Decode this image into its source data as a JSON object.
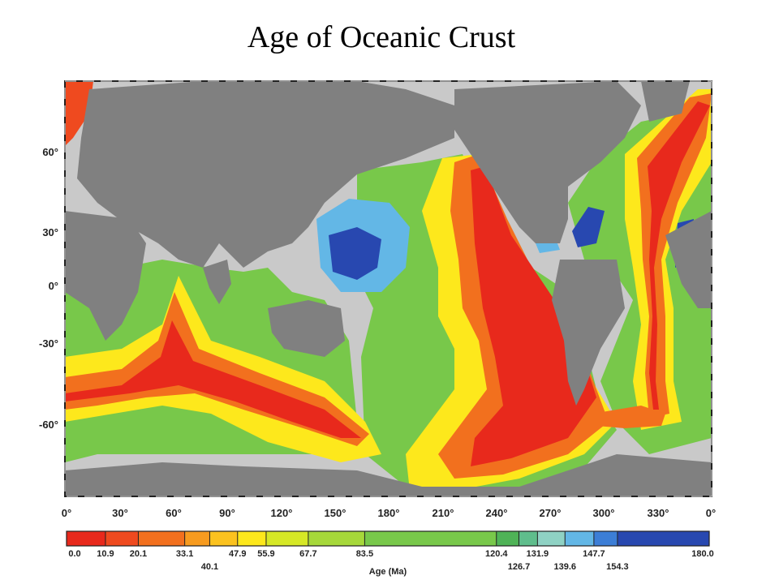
{
  "title": "Age of Oceanic Crust",
  "map": {
    "latitude_labels": [
      "60°",
      "30°",
      "0°",
      "-30°",
      "-60°"
    ],
    "longitude_labels": [
      "0°",
      "30°",
      "60°",
      "90°",
      "120°",
      "150°",
      "180°",
      "210°",
      "240°",
      "270°",
      "300°",
      "330°",
      "0°"
    ]
  },
  "colorbar": {
    "title": "Age (Ma)",
    "range": [
      0.0,
      180.0
    ],
    "bins": [
      {
        "from": 0.0,
        "to": 10.9,
        "color": "#e8291c"
      },
      {
        "from": 10.9,
        "to": 20.1,
        "color": "#ef4a1f"
      },
      {
        "from": 20.1,
        "to": 33.1,
        "color": "#f2701e"
      },
      {
        "from": 33.1,
        "to": 40.1,
        "color": "#f79b1f"
      },
      {
        "from": 40.1,
        "to": 47.9,
        "color": "#fbc21f"
      },
      {
        "from": 47.9,
        "to": 55.9,
        "color": "#fde81c"
      },
      {
        "from": 55.9,
        "to": 67.7,
        "color": "#d6e826"
      },
      {
        "from": 67.7,
        "to": 83.5,
        "color": "#a6d83a"
      },
      {
        "from": 83.5,
        "to": 120.4,
        "color": "#78c84a"
      },
      {
        "from": 120.4,
        "to": 126.7,
        "color": "#4fb357"
      },
      {
        "from": 126.7,
        "to": 131.9,
        "color": "#5fbd8c"
      },
      {
        "from": 131.9,
        "to": 139.6,
        "color": "#8fd2c4"
      },
      {
        "from": 139.6,
        "to": 147.7,
        "color": "#63b7e6"
      },
      {
        "from": 147.7,
        "to": 154.3,
        "color": "#3c7ed6"
      },
      {
        "from": 154.3,
        "to": 180.0,
        "color": "#2848b0"
      }
    ],
    "labels_top": [
      "0.0",
      "10.9",
      "20.1",
      "33.1",
      "47.9",
      "55.9",
      "67.7",
      "83.5",
      "120.4",
      "131.9",
      "147.7",
      "180.0"
    ],
    "labels_bottom": [
      "40.1",
      "126.7",
      "139.6",
      "154.3"
    ]
  }
}
